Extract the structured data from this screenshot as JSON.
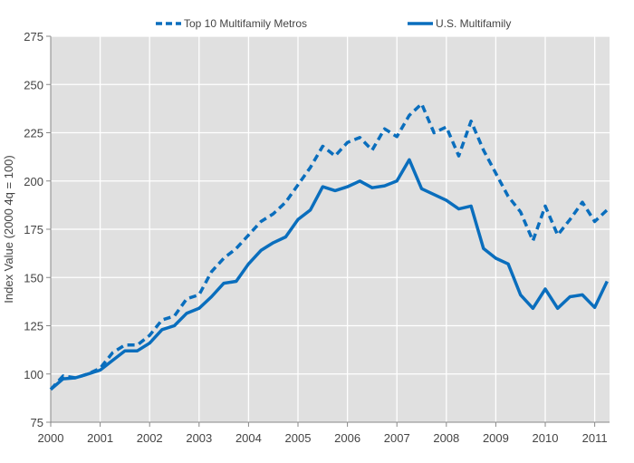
{
  "chart_data": {
    "type": "line",
    "title": "",
    "xlabel": "",
    "ylabel": "Index Value (2000 4q = 100)",
    "xlim": [
      2000,
      2011.25
    ],
    "ylim": [
      75,
      275
    ],
    "yticks": [
      75,
      100,
      125,
      150,
      175,
      200,
      225,
      250,
      275
    ],
    "xticks": [
      "2000",
      "2001",
      "2002",
      "2003",
      "2004",
      "2005",
      "2006",
      "2007",
      "2008",
      "2009",
      "2010",
      "2011"
    ],
    "grid": true,
    "legend_position": "top",
    "x_start": 2000,
    "x_step": 0.25,
    "series": [
      {
        "name": "Top 10 Multifamily Metros",
        "style": "dashed",
        "color": "#0a6ebd",
        "values": [
          92,
          99,
          98,
          100,
          103,
          111,
          115,
          115,
          120,
          128,
          130,
          139,
          141,
          153,
          160,
          165,
          172,
          179,
          183,
          189,
          198,
          207,
          218,
          213,
          220,
          222.5,
          216,
          227,
          223,
          234,
          240,
          225,
          228,
          213,
          231,
          216,
          204,
          192,
          184,
          169,
          187,
          172,
          180,
          189,
          179,
          185
        ]
      },
      {
        "name": "U.S. Multifamily",
        "style": "solid",
        "color": "#0a6ebd",
        "values": [
          92,
          97.5,
          98,
          100,
          102,
          107,
          112,
          112,
          116,
          123,
          125,
          131.5,
          134,
          140,
          147,
          148,
          157,
          164,
          168,
          171,
          180,
          185,
          197,
          195,
          197,
          200,
          196.5,
          197.5,
          200,
          211,
          196,
          193,
          190,
          185.5,
          187,
          165,
          160,
          157,
          141,
          134,
          144,
          134,
          140,
          141,
          134.5,
          148
        ]
      }
    ]
  }
}
